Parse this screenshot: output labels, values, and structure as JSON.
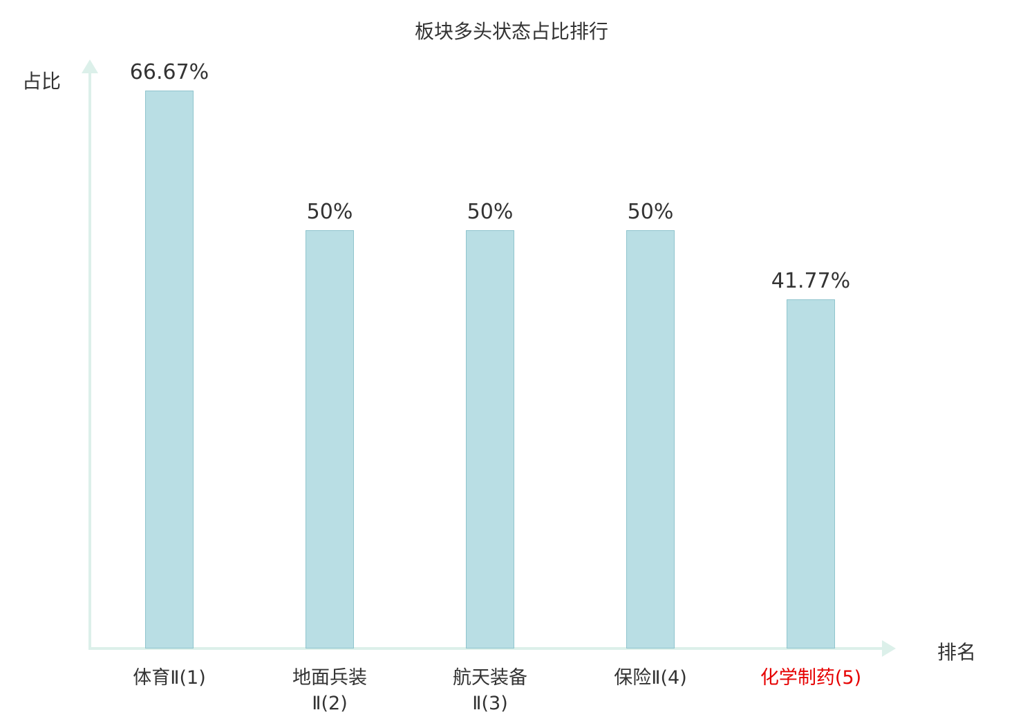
{
  "chart_data": {
    "type": "bar",
    "title": "板块多头状态占比排行",
    "xlabel": "排名",
    "ylabel": "占比",
    "categories": [
      "体育Ⅱ(1)",
      "地面兵装Ⅱ(2)",
      "航天装备Ⅱ(3)",
      "保险Ⅱ(4)",
      "化学制药(5)"
    ],
    "category_lines": [
      [
        "体育Ⅱ(1)"
      ],
      [
        "地面兵装",
        "Ⅱ(2)"
      ],
      [
        "航天装备",
        "Ⅱ(3)"
      ],
      [
        "保险Ⅱ(4)"
      ],
      [
        "化学制药(5)"
      ]
    ],
    "values": [
      66.67,
      50,
      50,
      50,
      41.77
    ],
    "value_labels": [
      "66.67%",
      "50%",
      "50%",
      "50%",
      "41.77%"
    ],
    "ylim": [
      0,
      70
    ],
    "grid": false,
    "legend": "none",
    "highlight_index": 4,
    "colors": {
      "bar_fill": "#b9dee4",
      "bar_border": "#8fc4cd",
      "axis": "#dcf0ea",
      "text": "#333333",
      "highlight": "#e60000"
    }
  }
}
